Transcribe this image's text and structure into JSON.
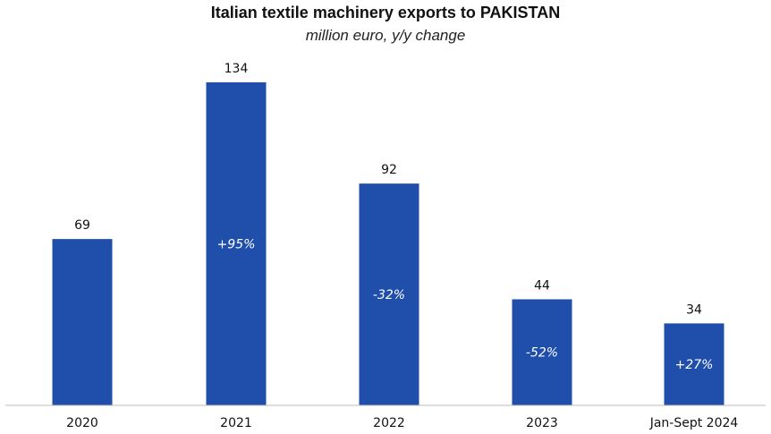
{
  "chart_data": {
    "type": "bar",
    "title": "Italian textile machinery exports to PAKISTAN",
    "subtitle": "million euro, y/y change",
    "categories": [
      "2020",
      "2021",
      "2022",
      "2023",
      "Jan-Sept 2024"
    ],
    "values": [
      69,
      134,
      92,
      44,
      34
    ],
    "value_labels": [
      "69",
      "134",
      "92",
      "44",
      "34"
    ],
    "change_labels": [
      "",
      "+95%",
      "-32%",
      "-52%",
      "+27%"
    ],
    "ylim": [
      0,
      134
    ],
    "grid": false,
    "legend": "none",
    "colors": {
      "bar": "#1f4eab",
      "baseline": "#bdbdbd"
    }
  }
}
